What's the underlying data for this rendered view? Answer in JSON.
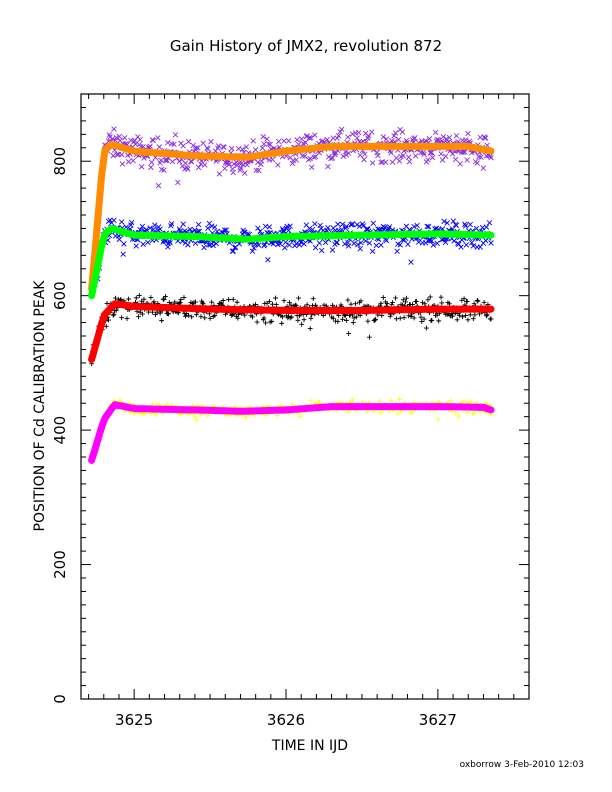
{
  "chart_data": {
    "type": "scatter",
    "title": "Gain History of JMX2, revolution 872",
    "xlabel": "TIME IN IJD",
    "ylabel": "POSITION OF Cd CALIBRATION PEAK",
    "footer": "oxborrow   3-Feb-2010 12:03",
    "xlim": [
      3624.65,
      3627.6
    ],
    "ylim": [
      0,
      900
    ],
    "xticks": [
      3625,
      3626,
      3627
    ],
    "xtick_labels": [
      "3625",
      "3626",
      "3627"
    ],
    "yticks": [
      0,
      200,
      400,
      600,
      800
    ],
    "ytick_labels": [
      "0",
      "200",
      "400",
      "600",
      "800"
    ],
    "grid": false,
    "series": [
      {
        "color": "#8a2be2",
        "marker": "x",
        "x_range": [
          3624.72,
          3627.35
        ],
        "plateau": 815,
        "spread": 28,
        "start": 600
      },
      {
        "color": "#ff8c00",
        "marker": "line",
        "x": [
          3624.72,
          3624.8,
          3624.85,
          3625.0,
          3625.4,
          3625.75,
          3626.0,
          3626.3,
          3626.8,
          3627.2,
          3627.35
        ],
        "y": [
          610,
          815,
          825,
          815,
          808,
          806,
          815,
          822,
          822,
          822,
          815
        ]
      },
      {
        "color": "#0000ff",
        "marker": "x",
        "x_range": [
          3624.72,
          3627.35
        ],
        "plateau": 690,
        "spread": 22,
        "start": 590
      },
      {
        "color": "#00ff00",
        "marker": "line",
        "x": [
          3624.72,
          3624.8,
          3624.85,
          3625.0,
          3625.4,
          3625.75,
          3626.0,
          3626.5,
          3627.0,
          3627.35
        ],
        "y": [
          600,
          690,
          700,
          690,
          688,
          684,
          688,
          690,
          692,
          690
        ]
      },
      {
        "color": "#000000",
        "marker": "+",
        "x_range": [
          3624.72,
          3627.35
        ],
        "plateau": 578,
        "spread": 20,
        "start": 505
      },
      {
        "color": "#ff0000",
        "marker": "line",
        "x": [
          3624.72,
          3624.8,
          3624.87,
          3625.0,
          3625.5,
          3626.0,
          3626.5,
          3627.0,
          3627.35
        ],
        "y": [
          505,
          570,
          588,
          584,
          580,
          578,
          578,
          580,
          580
        ]
      },
      {
        "color": "#ffff00",
        "marker": "+",
        "x_range": [
          3624.72,
          3627.35
        ],
        "plateau": 432,
        "spread": 10,
        "start": 360
      },
      {
        "color": "#ff00ff",
        "marker": "line",
        "x": [
          3624.72,
          3624.8,
          3624.87,
          3625.0,
          3625.4,
          3625.7,
          3626.0,
          3626.3,
          3627.0,
          3627.3,
          3627.35
        ],
        "y": [
          355,
          415,
          438,
          432,
          430,
          428,
          430,
          435,
          435,
          434,
          430
        ]
      }
    ]
  }
}
